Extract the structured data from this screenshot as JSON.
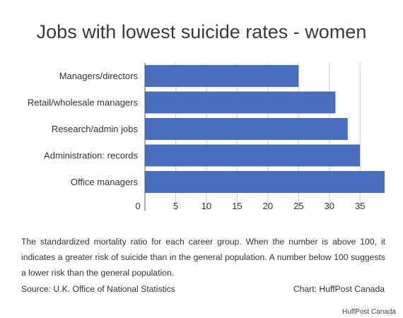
{
  "chart_data": {
    "type": "bar",
    "orientation": "horizontal",
    "title": "Jobs with lowest suicide rates - women",
    "categories": [
      "Managers/directors",
      "Retail/wholesale managers",
      "Research/admin jobs",
      "Administration: records",
      "Office managers"
    ],
    "values": [
      25,
      31,
      33,
      35,
      39
    ],
    "xticks": [
      "0",
      "5",
      "10",
      "15",
      "20",
      "25",
      "30",
      "35"
    ],
    "xlim": [
      0,
      39
    ],
    "grid": true,
    "bar_color": "#4a6ebe"
  },
  "caption": "The standardized mortality ratio for each career group. When the number is above 100, it indicates a greater risk of suicide than in the general population. A number below 100 suggests a lower risk than the general population.",
  "source": "Source: U.K. Office of National Statistics",
  "credit": "Chart: HuffPost Canada",
  "watermark": "HuffPost Canada"
}
